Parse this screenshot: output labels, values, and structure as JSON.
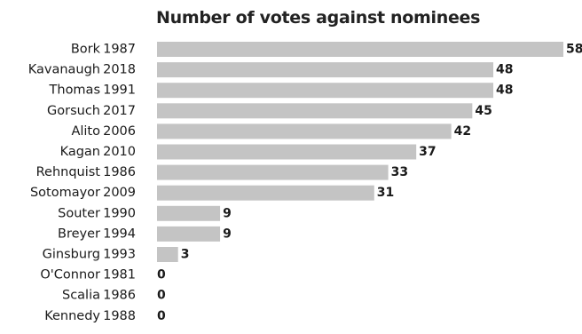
{
  "chart_data": {
    "type": "bar",
    "orientation": "horizontal",
    "title": "Number of votes against nominees",
    "xlabel": "",
    "ylabel": "",
    "xlim": [
      0,
      58
    ],
    "grid": false,
    "legend": "none",
    "bar_color": "#c4c4c4",
    "text_color": "#1a1a1a",
    "categories": [
      {
        "name": "Bork",
        "year": "1987"
      },
      {
        "name": "Kavanaugh",
        "year": "2018"
      },
      {
        "name": "Thomas",
        "year": "1991"
      },
      {
        "name": "Gorsuch",
        "year": "2017"
      },
      {
        "name": "Alito",
        "year": "2006"
      },
      {
        "name": "Kagan",
        "year": "2010"
      },
      {
        "name": "Rehnquist",
        "year": "1986"
      },
      {
        "name": "Sotomayor",
        "year": "2009"
      },
      {
        "name": "Souter",
        "year": "1990"
      },
      {
        "name": "Breyer",
        "year": "1994"
      },
      {
        "name": "Ginsburg",
        "year": "1993"
      },
      {
        "name": "O'Connor",
        "year": "1981"
      },
      {
        "name": "Scalia",
        "year": "1986"
      },
      {
        "name": "Kennedy",
        "year": "1988"
      }
    ],
    "values": [
      58,
      48,
      48,
      45,
      42,
      37,
      33,
      31,
      9,
      9,
      3,
      0,
      0,
      0
    ]
  }
}
